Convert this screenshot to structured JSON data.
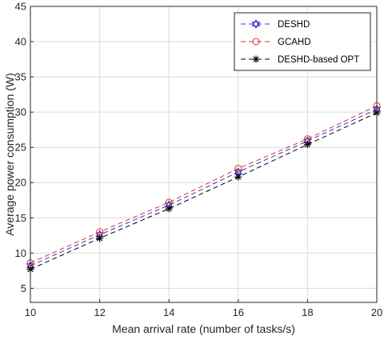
{
  "chart_data": {
    "type": "line",
    "title": "",
    "xlabel": "Mean arrival rate (number of tasks/s)",
    "ylabel": "Average power consumption (W)",
    "x": [
      10,
      12,
      14,
      16,
      18,
      20
    ],
    "xlim": [
      10,
      20
    ],
    "ylim": [
      3,
      45
    ],
    "xticks": [
      "10",
      "12",
      "14",
      "16",
      "18",
      "20"
    ],
    "yticks": [
      "5",
      "10",
      "15",
      "20",
      "25",
      "30",
      "35",
      "40",
      "45"
    ],
    "grid": true,
    "legend_position": "top-right",
    "series": [
      {
        "name": "DESHD",
        "values": [
          8.2,
          12.6,
          16.8,
          21.5,
          25.9,
          30.4
        ],
        "color": "#3333cc",
        "marker": "hexagram",
        "line": "dashed"
      },
      {
        "name": "GCAHD",
        "values": [
          8.6,
          13.0,
          17.2,
          22.0,
          26.2,
          30.9
        ],
        "color": "#e03030",
        "marker": "circle",
        "line": "dashed"
      },
      {
        "name": "DESHD-based OPT",
        "values": [
          7.7,
          12.1,
          16.3,
          20.8,
          25.4,
          29.9
        ],
        "color": "#000000",
        "marker": "asterisk",
        "line": "dashed"
      }
    ]
  }
}
